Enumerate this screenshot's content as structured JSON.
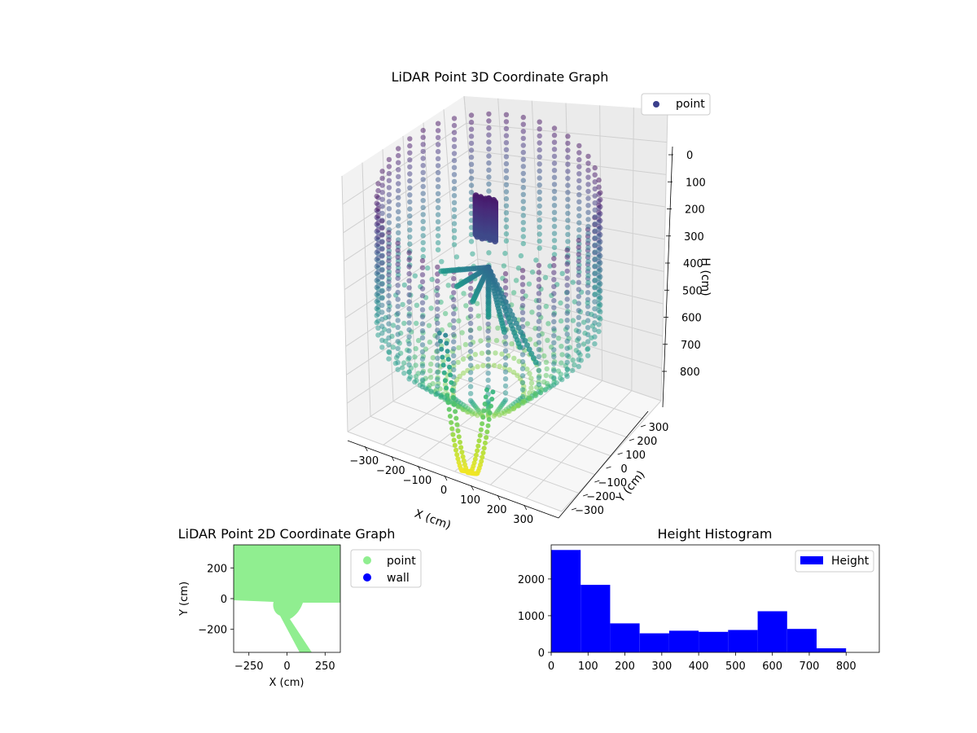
{
  "chart_data": [
    {
      "type": "scatter3d",
      "title": "LiDAR Point 3D Coordinate Graph",
      "xlabel": "X (cm)",
      "ylabel": "Y (cm)",
      "zlabel": "H (cm)",
      "xlim": [
        -350,
        350
      ],
      "ylim": [
        -350,
        350
      ],
      "zlim": [
        0,
        900
      ],
      "z_inverted": true,
      "xticks": [
        "−300",
        "−200",
        "−100",
        "0",
        "100",
        "200",
        "300"
      ],
      "yticks": [
        "−300",
        "−200",
        "−100",
        "0",
        "100",
        "200",
        "300"
      ],
      "zticks": [
        "0",
        "100",
        "200",
        "300",
        "400",
        "500",
        "600",
        "700",
        "800"
      ],
      "colormap": "viridis",
      "grid": true,
      "legend": {
        "position": "top-right",
        "entries": [
          {
            "label": "point",
            "color": "#3b3f8c"
          }
        ]
      },
      "structures": [
        {
          "kind": "cylindrical-wall",
          "radius": 330,
          "z_range": [
            0,
            700
          ]
        },
        {
          "kind": "floor-ring",
          "radius": 330,
          "z": 750
        },
        {
          "kind": "cone-center",
          "z_range": [
            300,
            480
          ]
        },
        {
          "kind": "dense-cluster",
          "x": -10,
          "y": 0,
          "z_range": [
            60,
            200
          ]
        },
        {
          "kind": "hanging-strands",
          "x_range": [
            -80,
            120
          ],
          "z_range": [
            400,
            900
          ]
        }
      ]
    },
    {
      "type": "scatter",
      "title": "LiDAR Point 2D Coordinate Graph",
      "xlabel": "X (cm)",
      "ylabel": "Y (cm)",
      "xlim": [
        -350,
        350
      ],
      "ylim": [
        -350,
        350
      ],
      "xticks": [
        "−250",
        "0",
        "250"
      ],
      "yticks": [
        "−200",
        "0",
        "200"
      ],
      "legend": {
        "position": "outside-right",
        "entries": [
          {
            "label": "point",
            "color": "#90ee90"
          },
          {
            "label": "wall",
            "color": "#0000ff"
          }
        ]
      },
      "regions": [
        {
          "name": "point",
          "color": "#90ee90",
          "description": "filled area y>0 with circular bulge at origin and strip toward (150,-350)"
        }
      ]
    },
    {
      "type": "bar",
      "title": "Height Histogram",
      "series": [
        {
          "name": "Height",
          "color": "#0000ff",
          "bins": [
            0,
            80,
            160,
            240,
            320,
            400,
            480,
            560,
            640,
            720,
            800
          ],
          "values": [
            2790,
            1840,
            790,
            520,
            590,
            560,
            610,
            1120,
            640,
            110
          ]
        }
      ],
      "xlim": [
        0,
        890
      ],
      "ylim": [
        0,
        2930
      ],
      "xticks": [
        "0",
        "100",
        "200",
        "300",
        "400",
        "500",
        "600",
        "700",
        "800"
      ],
      "yticks": [
        "0",
        "1000",
        "2000"
      ],
      "legend": {
        "position": "top-right"
      }
    }
  ]
}
